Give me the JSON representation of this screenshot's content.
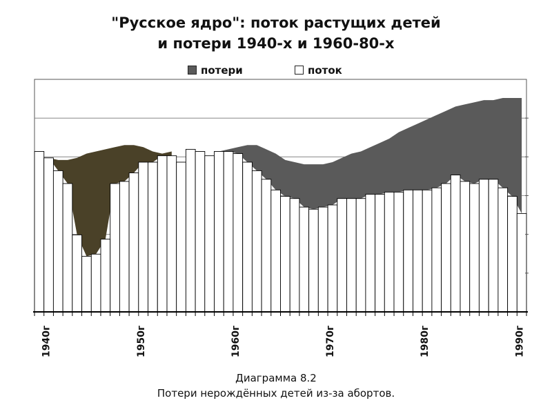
{
  "title_line1": "\"Русское ядро\": поток растущих детей",
  "title_line2": "и потери 1940-х и 1960-80-х",
  "legend": {
    "losses": "потери",
    "flow": "поток"
  },
  "caption_line1": "Диаграмма 8.2",
  "caption_line2": "Потери нерождённых детей из-за абортов.",
  "colors": {
    "losses_1940s": "#4a4128",
    "losses_1960_80s": "#5a5a5a",
    "flow": "#ffffff",
    "frame": "#555555",
    "axis": "#000000"
  },
  "chart_data": {
    "type": "area",
    "title": "\"Русское ядро\": поток растущих детей и потери 1940-х и 1960-80-х",
    "x": [
      1939,
      1940,
      1941,
      1942,
      1943,
      1944,
      1945,
      1946,
      1947,
      1948,
      1949,
      1950,
      1951,
      1952,
      1953,
      1954,
      1955,
      1956,
      1957,
      1958,
      1959,
      1960,
      1961,
      1962,
      1963,
      1964,
      1965,
      1966,
      1967,
      1968,
      1969,
      1970,
      1971,
      1972,
      1973,
      1974,
      1975,
      1976,
      1977,
      1978,
      1979,
      1980,
      1981,
      1982,
      1983,
      1984,
      1985,
      1986,
      1987,
      1988,
      1989,
      1990
    ],
    "x_tick_labels": [
      "1940г",
      "1950г",
      "1960г",
      "1970г",
      "1980г",
      "1990г"
    ],
    "x_tick_values": [
      1940,
      1950,
      1960,
      1970,
      1980,
      1990
    ],
    "y_tick_count": 6,
    "ylim": [
      0,
      100
    ],
    "grid": "horizontal",
    "legend_position": "top",
    "series": [
      {
        "name": "поток",
        "kind": "bar",
        "values": [
          75,
          72,
          66,
          60,
          36,
          26,
          27,
          34,
          60,
          61,
          65,
          70,
          70,
          73,
          73,
          70,
          76,
          75,
          73,
          75,
          75,
          74,
          70,
          66,
          62,
          57,
          54,
          53,
          49,
          48,
          49,
          50,
          53,
          53,
          53,
          55,
          55,
          56,
          56,
          57,
          57,
          57,
          58,
          60,
          64,
          61,
          60,
          62,
          62,
          58,
          54,
          46
        ]
      },
      {
        "name": "потери",
        "kind": "area-top",
        "values": [
          75,
          72,
          71,
          71,
          72,
          74,
          75,
          76,
          77,
          78,
          78,
          77,
          75,
          74,
          75,
          75,
          76,
          75,
          75,
          75,
          76,
          77,
          78,
          78,
          76,
          74,
          71,
          70,
          69,
          69,
          69,
          70,
          72,
          74,
          75,
          77,
          79,
          81,
          84,
          86,
          88,
          90,
          92,
          94,
          96,
          97,
          98,
          99,
          99,
          100,
          100,
          100
        ]
      }
    ]
  }
}
